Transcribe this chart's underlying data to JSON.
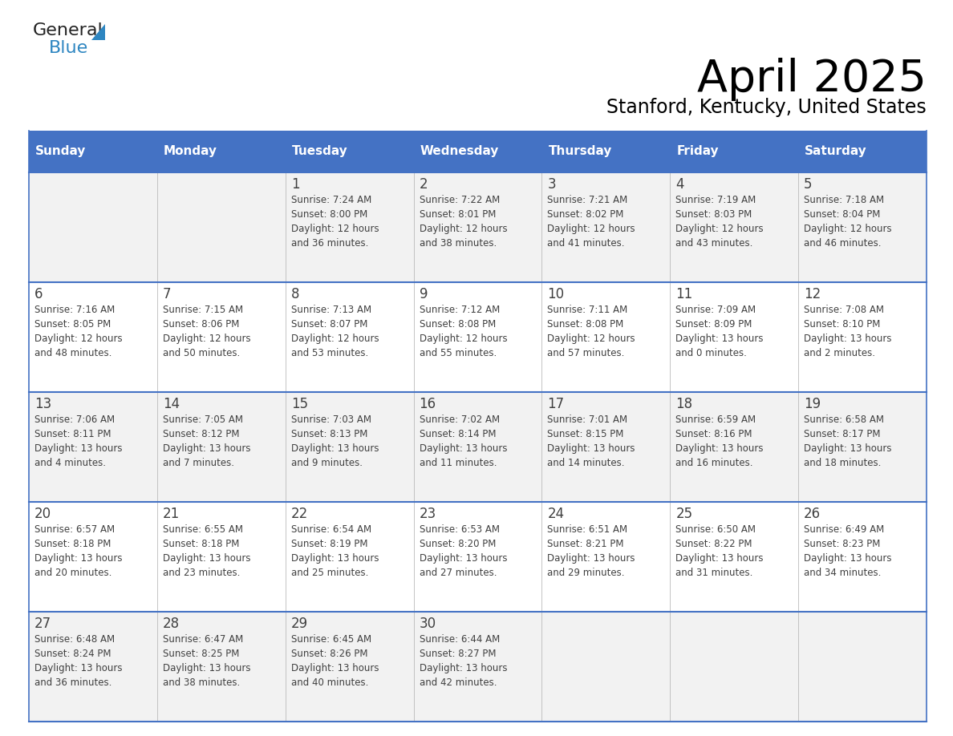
{
  "title": "April 2025",
  "subtitle": "Stanford, Kentucky, United States",
  "header_bg": "#4472C4",
  "header_text_color": "#FFFFFF",
  "days_of_week": [
    "Sunday",
    "Monday",
    "Tuesday",
    "Wednesday",
    "Thursday",
    "Friday",
    "Saturday"
  ],
  "row_bg_odd": "#F2F2F2",
  "row_bg_even": "#FFFFFF",
  "cell_border_color": "#4472C4",
  "text_color": "#404040",
  "calendar_data": [
    [
      {
        "day": "",
        "sunrise": "",
        "sunset": "",
        "daylight": ""
      },
      {
        "day": "",
        "sunrise": "",
        "sunset": "",
        "daylight": ""
      },
      {
        "day": "1",
        "sunrise": "Sunrise: 7:24 AM",
        "sunset": "Sunset: 8:00 PM",
        "daylight": "Daylight: 12 hours\nand 36 minutes."
      },
      {
        "day": "2",
        "sunrise": "Sunrise: 7:22 AM",
        "sunset": "Sunset: 8:01 PM",
        "daylight": "Daylight: 12 hours\nand 38 minutes."
      },
      {
        "day": "3",
        "sunrise": "Sunrise: 7:21 AM",
        "sunset": "Sunset: 8:02 PM",
        "daylight": "Daylight: 12 hours\nand 41 minutes."
      },
      {
        "day": "4",
        "sunrise": "Sunrise: 7:19 AM",
        "sunset": "Sunset: 8:03 PM",
        "daylight": "Daylight: 12 hours\nand 43 minutes."
      },
      {
        "day": "5",
        "sunrise": "Sunrise: 7:18 AM",
        "sunset": "Sunset: 8:04 PM",
        "daylight": "Daylight: 12 hours\nand 46 minutes."
      }
    ],
    [
      {
        "day": "6",
        "sunrise": "Sunrise: 7:16 AM",
        "sunset": "Sunset: 8:05 PM",
        "daylight": "Daylight: 12 hours\nand 48 minutes."
      },
      {
        "day": "7",
        "sunrise": "Sunrise: 7:15 AM",
        "sunset": "Sunset: 8:06 PM",
        "daylight": "Daylight: 12 hours\nand 50 minutes."
      },
      {
        "day": "8",
        "sunrise": "Sunrise: 7:13 AM",
        "sunset": "Sunset: 8:07 PM",
        "daylight": "Daylight: 12 hours\nand 53 minutes."
      },
      {
        "day": "9",
        "sunrise": "Sunrise: 7:12 AM",
        "sunset": "Sunset: 8:08 PM",
        "daylight": "Daylight: 12 hours\nand 55 minutes."
      },
      {
        "day": "10",
        "sunrise": "Sunrise: 7:11 AM",
        "sunset": "Sunset: 8:08 PM",
        "daylight": "Daylight: 12 hours\nand 57 minutes."
      },
      {
        "day": "11",
        "sunrise": "Sunrise: 7:09 AM",
        "sunset": "Sunset: 8:09 PM",
        "daylight": "Daylight: 13 hours\nand 0 minutes."
      },
      {
        "day": "12",
        "sunrise": "Sunrise: 7:08 AM",
        "sunset": "Sunset: 8:10 PM",
        "daylight": "Daylight: 13 hours\nand 2 minutes."
      }
    ],
    [
      {
        "day": "13",
        "sunrise": "Sunrise: 7:06 AM",
        "sunset": "Sunset: 8:11 PM",
        "daylight": "Daylight: 13 hours\nand 4 minutes."
      },
      {
        "day": "14",
        "sunrise": "Sunrise: 7:05 AM",
        "sunset": "Sunset: 8:12 PM",
        "daylight": "Daylight: 13 hours\nand 7 minutes."
      },
      {
        "day": "15",
        "sunrise": "Sunrise: 7:03 AM",
        "sunset": "Sunset: 8:13 PM",
        "daylight": "Daylight: 13 hours\nand 9 minutes."
      },
      {
        "day": "16",
        "sunrise": "Sunrise: 7:02 AM",
        "sunset": "Sunset: 8:14 PM",
        "daylight": "Daylight: 13 hours\nand 11 minutes."
      },
      {
        "day": "17",
        "sunrise": "Sunrise: 7:01 AM",
        "sunset": "Sunset: 8:15 PM",
        "daylight": "Daylight: 13 hours\nand 14 minutes."
      },
      {
        "day": "18",
        "sunrise": "Sunrise: 6:59 AM",
        "sunset": "Sunset: 8:16 PM",
        "daylight": "Daylight: 13 hours\nand 16 minutes."
      },
      {
        "day": "19",
        "sunrise": "Sunrise: 6:58 AM",
        "sunset": "Sunset: 8:17 PM",
        "daylight": "Daylight: 13 hours\nand 18 minutes."
      }
    ],
    [
      {
        "day": "20",
        "sunrise": "Sunrise: 6:57 AM",
        "sunset": "Sunset: 8:18 PM",
        "daylight": "Daylight: 13 hours\nand 20 minutes."
      },
      {
        "day": "21",
        "sunrise": "Sunrise: 6:55 AM",
        "sunset": "Sunset: 8:18 PM",
        "daylight": "Daylight: 13 hours\nand 23 minutes."
      },
      {
        "day": "22",
        "sunrise": "Sunrise: 6:54 AM",
        "sunset": "Sunset: 8:19 PM",
        "daylight": "Daylight: 13 hours\nand 25 minutes."
      },
      {
        "day": "23",
        "sunrise": "Sunrise: 6:53 AM",
        "sunset": "Sunset: 8:20 PM",
        "daylight": "Daylight: 13 hours\nand 27 minutes."
      },
      {
        "day": "24",
        "sunrise": "Sunrise: 6:51 AM",
        "sunset": "Sunset: 8:21 PM",
        "daylight": "Daylight: 13 hours\nand 29 minutes."
      },
      {
        "day": "25",
        "sunrise": "Sunrise: 6:50 AM",
        "sunset": "Sunset: 8:22 PM",
        "daylight": "Daylight: 13 hours\nand 31 minutes."
      },
      {
        "day": "26",
        "sunrise": "Sunrise: 6:49 AM",
        "sunset": "Sunset: 8:23 PM",
        "daylight": "Daylight: 13 hours\nand 34 minutes."
      }
    ],
    [
      {
        "day": "27",
        "sunrise": "Sunrise: 6:48 AM",
        "sunset": "Sunset: 8:24 PM",
        "daylight": "Daylight: 13 hours\nand 36 minutes."
      },
      {
        "day": "28",
        "sunrise": "Sunrise: 6:47 AM",
        "sunset": "Sunset: 8:25 PM",
        "daylight": "Daylight: 13 hours\nand 38 minutes."
      },
      {
        "day": "29",
        "sunrise": "Sunrise: 6:45 AM",
        "sunset": "Sunset: 8:26 PM",
        "daylight": "Daylight: 13 hours\nand 40 minutes."
      },
      {
        "day": "30",
        "sunrise": "Sunrise: 6:44 AM",
        "sunset": "Sunset: 8:27 PM",
        "daylight": "Daylight: 13 hours\nand 42 minutes."
      },
      {
        "day": "",
        "sunrise": "",
        "sunset": "",
        "daylight": ""
      },
      {
        "day": "",
        "sunrise": "",
        "sunset": "",
        "daylight": ""
      },
      {
        "day": "",
        "sunrise": "",
        "sunset": "",
        "daylight": ""
      }
    ]
  ],
  "logo_general_color": "#222222",
  "logo_blue_color": "#2E86C1",
  "logo_triangle_color": "#2E86C1"
}
